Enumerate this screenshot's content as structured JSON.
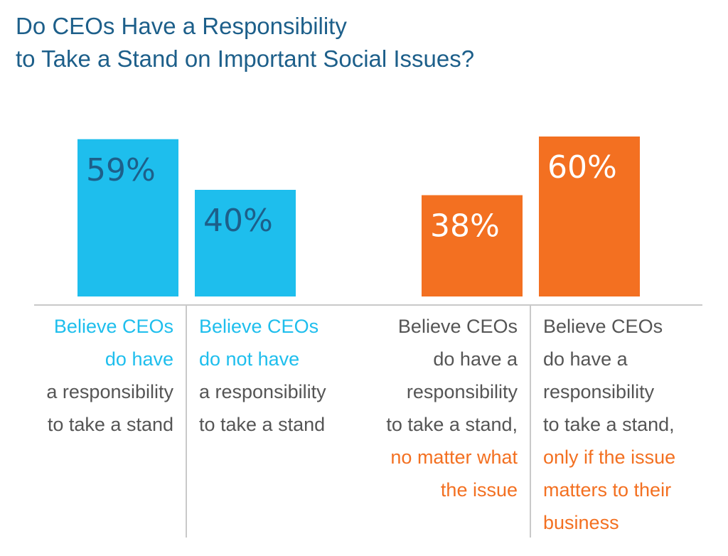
{
  "title": {
    "line1": "Do CEOs Have a Responsibility",
    "line2": "to Take a Stand on Important Social Issues?"
  },
  "colors": {
    "blue": "#1ebeed",
    "orange": "#f37021",
    "title": "#1d5f8a",
    "text": "#555555",
    "dark_label": "#1d5f8a"
  },
  "chart_data": {
    "type": "bar",
    "title": "Do CEOs Have a Responsibility to Take a Stand on Important Social Issues?",
    "unit": "%",
    "ylim": [
      0,
      100
    ],
    "groups": [
      {
        "bars": [
          {
            "value": 59,
            "label": "59%",
            "color": "#1ebeed",
            "description": [
              "Believe CEOs",
              "do have",
              "a responsibility",
              "to take a stand"
            ],
            "highlight_lines": [
              0,
              1
            ]
          },
          {
            "value": 40,
            "label": "40%",
            "color": "#1ebeed",
            "description": [
              "Believe CEOs",
              "do not have",
              "a responsibility",
              "to take a stand"
            ],
            "highlight_lines": [
              0,
              1
            ]
          }
        ]
      },
      {
        "bars": [
          {
            "value": 38,
            "label": "38%",
            "color": "#f37021",
            "description": [
              "Believe CEOs",
              "do have a",
              "responsibility",
              "to take a stand,",
              "no matter what",
              "the issue"
            ],
            "highlight_lines": [
              4,
              5
            ]
          },
          {
            "value": 60,
            "label": "60%",
            "color": "#f37021",
            "description": [
              "Believe CEOs",
              "do have a",
              "responsibility",
              "to take a stand,",
              "only if the issue",
              "matters to their",
              "business"
            ],
            "highlight_lines": [
              4,
              5,
              6
            ]
          }
        ]
      }
    ]
  }
}
